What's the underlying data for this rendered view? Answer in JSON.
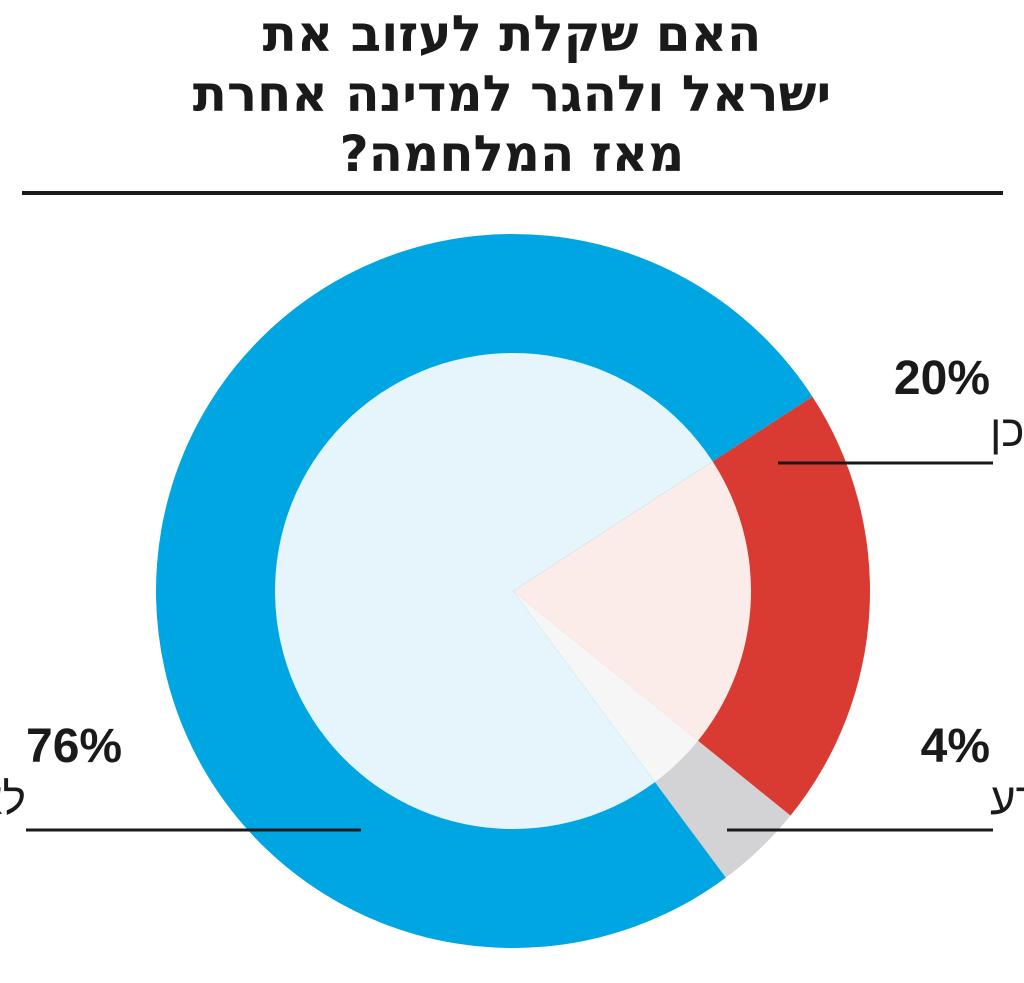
{
  "title_lines": [
    "האם שקלת לעזוב את",
    "ישראל ולהגר למדינה אחרת",
    "מאז המלחמה?"
  ],
  "chart_data": {
    "type": "pie",
    "title": "האם שקלת לעזוב את ישראל ולהגר למדינה אחרת מאז המלחמה?",
    "slices": [
      {
        "label": "כן",
        "value": 20,
        "value_label": "20%",
        "color": "#d93a32",
        "inner_color": "#fbecea"
      },
      {
        "label": "לא יודע",
        "value": 4,
        "value_label": "4%",
        "color": "#d3d3d5",
        "inner_color": "#f6f6f7"
      },
      {
        "label": "לא",
        "value": 76,
        "value_label": "76%",
        "color": "#00a6e2",
        "inner_color": "#e5f5fb"
      }
    ]
  }
}
